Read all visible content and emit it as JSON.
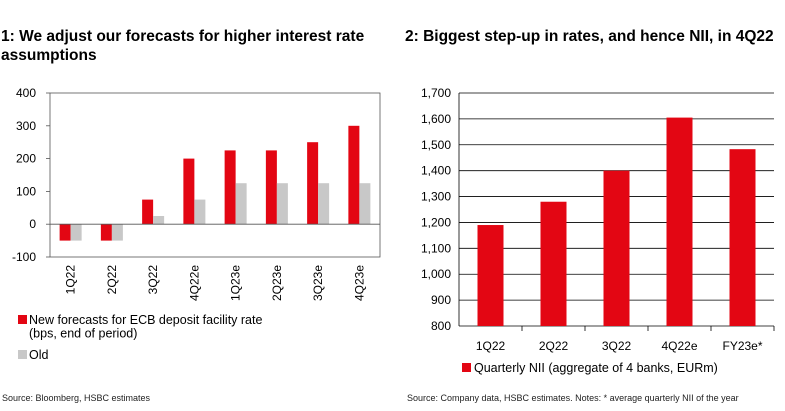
{
  "chart_data": [
    {
      "type": "bar",
      "title": "1: We adjust our forecasts for higher interest rate assumptions",
      "source": "Source: Bloomberg, HSBC estimates",
      "categories": [
        "1Q22",
        "2Q22",
        "3Q22",
        "4Q22e",
        "1Q23e",
        "2Q23e",
        "3Q23e",
        "4Q23e"
      ],
      "series": [
        {
          "name": "New forecasts for ECB deposit facility rate (bps, end of period)",
          "color": "#e30613",
          "values": [
            -50,
            -50,
            75,
            200,
            225,
            225,
            250,
            300
          ]
        },
        {
          "name": "Old",
          "color": "#c8c8c8",
          "values": [
            -50,
            -50,
            25,
            75,
            125,
            125,
            125,
            125
          ]
        }
      ],
      "ylim": [
        -100,
        400
      ],
      "yticks": [
        "400",
        "300",
        "200",
        "100",
        "0",
        "-100"
      ],
      "grid": false,
      "legend": "bottom"
    },
    {
      "type": "bar",
      "title": "2: Biggest step-up in rates, and hence NII, in 4Q22",
      "source": "Source: Company data, HSBC estimates. Notes: * average quarterly NII of the year",
      "categories": [
        "1Q22",
        "2Q22",
        "3Q22",
        "4Q22e",
        "FY23e*"
      ],
      "series": [
        {
          "name": "Quarterly NII (aggregate of 4 banks, EURm)",
          "color": "#e30613",
          "values": [
            1190,
            1280,
            1400,
            1605,
            1483
          ]
        }
      ],
      "ylim": [
        800,
        1700
      ],
      "yticks": [
        "1,700",
        "1,600",
        "1,500",
        "1,400",
        "1,300",
        "1,200",
        "1,100",
        "1,000",
        "900",
        "800"
      ],
      "grid": true,
      "legend": "bottom"
    }
  ]
}
